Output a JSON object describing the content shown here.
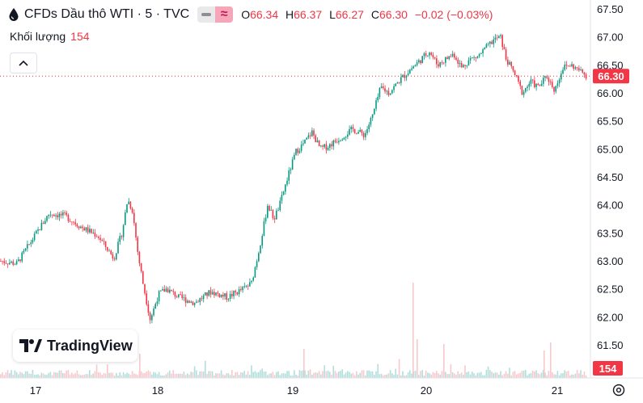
{
  "header": {
    "symbol_title": "CFDs Dầu thô WTI · 5 · TVC",
    "ohlc": {
      "o_label": "O",
      "o_value": "66.34",
      "h_label": "H",
      "h_value": "66.37",
      "l_label": "L",
      "l_value": "66.27",
      "c_label": "C",
      "c_value": "66.30",
      "change": "−0.02 (−0.03%)"
    }
  },
  "volume_legend": {
    "label": "Khối lượng",
    "value": "154"
  },
  "branding": {
    "logo_text": "TradingView"
  },
  "colors": {
    "up": "#089981",
    "down": "#f23645",
    "up_volume": "#b2dfdb",
    "down_volume": "#f7c9cd",
    "axis_text": "#131722",
    "last_price_badge": "#f23645"
  },
  "icons": [
    "oil-drop-icon",
    "chevron-up-icon",
    "settings-icon"
  ],
  "chart_data": {
    "type": "candlestick",
    "y_ticks": [
      "67.50",
      "67.00",
      "66.50",
      "66.00",
      "65.50",
      "65.00",
      "64.50",
      "64.00",
      "63.50",
      "63.00",
      "62.50",
      "62.00",
      "61.50"
    ],
    "ylim": [
      61.5,
      67.5
    ],
    "x_ticks": [
      "17",
      "18",
      "19",
      "20",
      "21"
    ],
    "last_price": {
      "value": 66.3,
      "label": "66.30"
    },
    "last_volume": {
      "value": 154,
      "label": "154"
    },
    "price_path": [
      [
        0,
        63.0
      ],
      [
        20,
        62.95
      ],
      [
        40,
        63.4
      ],
      [
        60,
        63.85
      ],
      [
        80,
        63.8
      ],
      [
        100,
        63.6
      ],
      [
        120,
        63.45
      ],
      [
        140,
        63.05
      ],
      [
        150,
        63.5
      ],
      [
        157,
        64.1
      ],
      [
        163,
        63.9
      ],
      [
        170,
        63.1
      ],
      [
        176,
        62.6
      ],
      [
        185,
        61.95
      ],
      [
        195,
        62.4
      ],
      [
        205,
        62.5
      ],
      [
        220,
        62.35
      ],
      [
        240,
        62.25
      ],
      [
        260,
        62.45
      ],
      [
        280,
        62.35
      ],
      [
        300,
        62.5
      ],
      [
        310,
        62.6
      ],
      [
        318,
        63.1
      ],
      [
        325,
        63.6
      ],
      [
        330,
        64.0
      ],
      [
        338,
        63.75
      ],
      [
        345,
        64.0
      ],
      [
        355,
        64.5
      ],
      [
        365,
        64.95
      ],
      [
        375,
        65.1
      ],
      [
        385,
        65.3
      ],
      [
        395,
        65.0
      ],
      [
        405,
        65.05
      ],
      [
        420,
        65.2
      ],
      [
        435,
        65.35
      ],
      [
        450,
        65.25
      ],
      [
        460,
        65.6
      ],
      [
        470,
        66.1
      ],
      [
        480,
        66.0
      ],
      [
        495,
        66.25
      ],
      [
        505,
        66.4
      ],
      [
        520,
        66.6
      ],
      [
        530,
        66.75
      ],
      [
        540,
        66.5
      ],
      [
        550,
        66.6
      ],
      [
        560,
        66.7
      ],
      [
        570,
        66.45
      ],
      [
        580,
        66.6
      ],
      [
        590,
        66.65
      ],
      [
        600,
        66.8
      ],
      [
        610,
        66.95
      ],
      [
        618,
        67.0
      ],
      [
        625,
        66.6
      ],
      [
        635,
        66.35
      ],
      [
        645,
        66.0
      ],
      [
        655,
        66.2
      ],
      [
        665,
        66.1
      ],
      [
        675,
        66.3
      ],
      [
        685,
        66.05
      ],
      [
        695,
        66.45
      ],
      [
        705,
        66.5
      ],
      [
        715,
        66.4
      ],
      [
        725,
        66.3
      ]
    ]
  }
}
